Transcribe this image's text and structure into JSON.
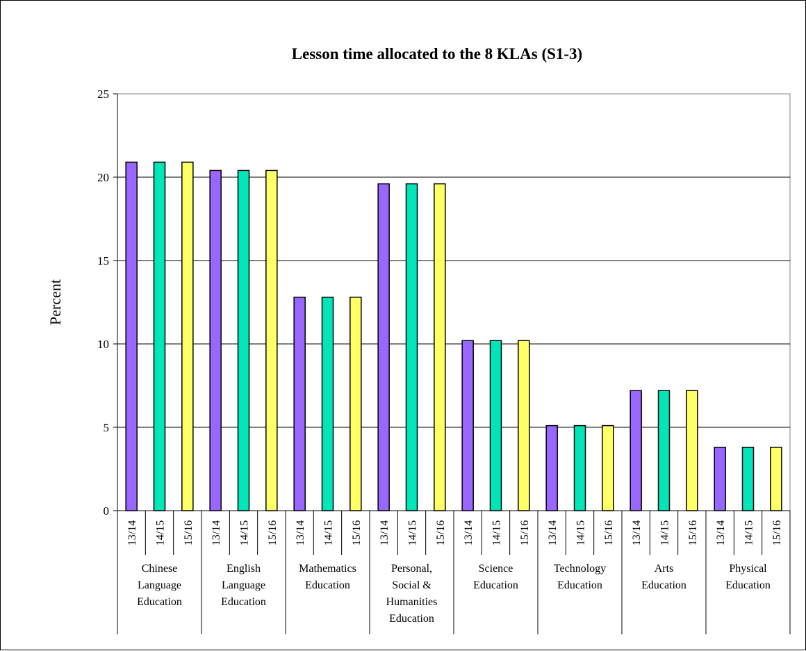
{
  "chart_data": {
    "type": "bar",
    "title": "Lesson time allocated to the 8 KLAs (S1-3)",
    "ylabel": "Percent",
    "xlabel": "",
    "ylim": [
      0,
      25
    ],
    "yticks": [
      0,
      5,
      10,
      15,
      20,
      25
    ],
    "grid": true,
    "legend": "none",
    "categories": [
      [
        "Chinese",
        "Language",
        "Education"
      ],
      [
        "English",
        "Language",
        "Education"
      ],
      [
        "Mathematics",
        "Education"
      ],
      [
        "Personal,",
        "Social &",
        "Humanities",
        "Education"
      ],
      [
        "Science",
        "Education"
      ],
      [
        "Technology",
        "Education"
      ],
      [
        "Arts",
        "Education"
      ],
      [
        "Physical",
        "Education"
      ]
    ],
    "series": [
      {
        "label": "13/14",
        "color": "#9966ff",
        "values": [
          20.9,
          20.4,
          12.8,
          19.6,
          10.2,
          5.1,
          7.2,
          3.8
        ]
      },
      {
        "label": "14/15",
        "color": "#00e6b8",
        "values": [
          20.9,
          20.4,
          12.8,
          19.6,
          10.2,
          5.1,
          7.2,
          3.8
        ]
      },
      {
        "label": "15/16",
        "color": "#ffff66",
        "values": [
          20.9,
          20.4,
          12.8,
          19.6,
          10.2,
          5.1,
          7.2,
          3.8
        ]
      }
    ]
  }
}
